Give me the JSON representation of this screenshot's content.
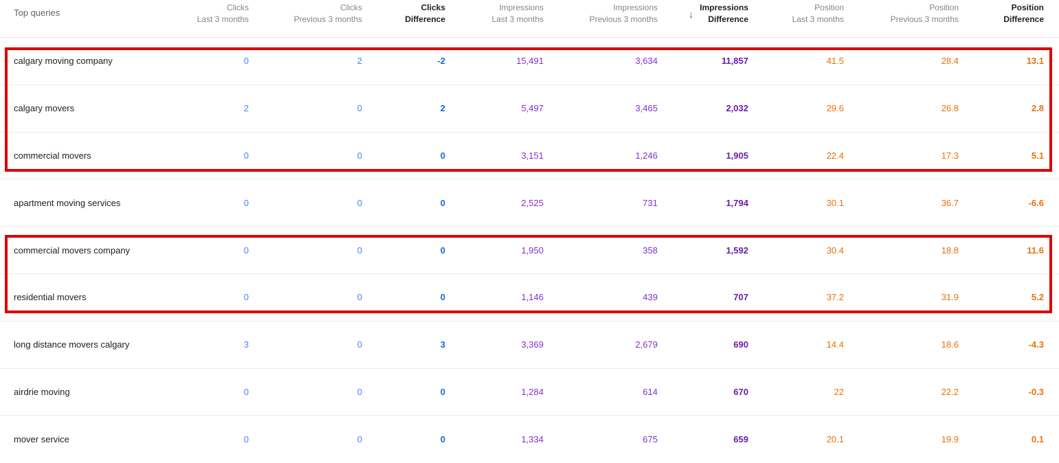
{
  "table": {
    "query_column_label": "Top queries",
    "sort_icon": "down-arrow",
    "sort_icon_glyph": "↓",
    "sorted_by": "Impressions Difference",
    "sort_direction": "descending",
    "columns": [
      {
        "group": "Clicks",
        "period": "Last 3 months",
        "bold": false,
        "sorted": false
      },
      {
        "group": "Clicks",
        "period": "Previous 3 months",
        "bold": false,
        "sorted": false
      },
      {
        "group": "Clicks",
        "period": "Difference",
        "bold": true,
        "sorted": false
      },
      {
        "group": "Impressions",
        "period": "Last 3 months",
        "bold": false,
        "sorted": false
      },
      {
        "group": "Impressions",
        "period": "Previous 3 months",
        "bold": false,
        "sorted": false
      },
      {
        "group": "Impressions",
        "period": "Difference",
        "bold": true,
        "sorted": true
      },
      {
        "group": "Position",
        "period": "Last 3 months",
        "bold": false,
        "sorted": false
      },
      {
        "group": "Position",
        "period": "Previous 3 months",
        "bold": false,
        "sorted": false
      },
      {
        "group": "Position",
        "period": "Difference",
        "bold": true,
        "sorted": false
      }
    ],
    "rows": [
      {
        "query": "calgary moving company",
        "clicks_last": "0",
        "clicks_prev": "2",
        "clicks_diff": "-2",
        "imp_last": "15,491",
        "imp_prev": "3,634",
        "imp_diff": "11,857",
        "pos_last": "41.5",
        "pos_prev": "28.4",
        "pos_diff": "13.1"
      },
      {
        "query": "calgary movers",
        "clicks_last": "2",
        "clicks_prev": "0",
        "clicks_diff": "2",
        "imp_last": "5,497",
        "imp_prev": "3,465",
        "imp_diff": "2,032",
        "pos_last": "29.6",
        "pos_prev": "26.8",
        "pos_diff": "2.8"
      },
      {
        "query": "commercial movers",
        "clicks_last": "0",
        "clicks_prev": "0",
        "clicks_diff": "0",
        "imp_last": "3,151",
        "imp_prev": "1,246",
        "imp_diff": "1,905",
        "pos_last": "22.4",
        "pos_prev": "17.3",
        "pos_diff": "5.1"
      },
      {
        "query": "apartment moving services",
        "clicks_last": "0",
        "clicks_prev": "0",
        "clicks_diff": "0",
        "imp_last": "2,525",
        "imp_prev": "731",
        "imp_diff": "1,794",
        "pos_last": "30.1",
        "pos_prev": "36.7",
        "pos_diff": "-6.6"
      },
      {
        "query": "commercial movers company",
        "clicks_last": "0",
        "clicks_prev": "0",
        "clicks_diff": "0",
        "imp_last": "1,950",
        "imp_prev": "358",
        "imp_diff": "1,592",
        "pos_last": "30.4",
        "pos_prev": "18.8",
        "pos_diff": "11.6"
      },
      {
        "query": "residential movers",
        "clicks_last": "0",
        "clicks_prev": "0",
        "clicks_diff": "0",
        "imp_last": "1,146",
        "imp_prev": "439",
        "imp_diff": "707",
        "pos_last": "37.2",
        "pos_prev": "31.9",
        "pos_diff": "5.2"
      },
      {
        "query": "long distance movers calgary",
        "clicks_last": "3",
        "clicks_prev": "0",
        "clicks_diff": "3",
        "imp_last": "3,369",
        "imp_prev": "2,679",
        "imp_diff": "690",
        "pos_last": "14.4",
        "pos_prev": "18.6",
        "pos_diff": "-4.3"
      },
      {
        "query": "airdrie moving",
        "clicks_last": "0",
        "clicks_prev": "0",
        "clicks_diff": "0",
        "imp_last": "1,284",
        "imp_prev": "614",
        "imp_diff": "670",
        "pos_last": "22",
        "pos_prev": "22.2",
        "pos_diff": "-0.3"
      },
      {
        "query": "mover service",
        "clicks_last": "0",
        "clicks_prev": "0",
        "clicks_diff": "0",
        "imp_last": "1,334",
        "imp_prev": "675",
        "imp_diff": "659",
        "pos_last": "20.1",
        "pos_prev": "19.9",
        "pos_diff": "0.1"
      }
    ]
  },
  "annotations": {
    "color": "#dd0000",
    "highlight_boxes": [
      {
        "covers_queries": [
          "calgary moving company",
          "calgary movers",
          "commercial movers"
        ]
      },
      {
        "covers_queries": [
          "commercial movers company",
          "residential movers"
        ]
      }
    ]
  },
  "colors": {
    "clicks": "#4285f4",
    "clicks_difference": "#1967d2",
    "impressions": "#8430ce",
    "impressions_difference": "#681da8",
    "position": "#e8710a",
    "position_difference": "#e8710a",
    "header_text": "#80868b",
    "header_bold_text": "#202124",
    "row_divider": "#ececec",
    "annotation_red": "#dd0000"
  }
}
